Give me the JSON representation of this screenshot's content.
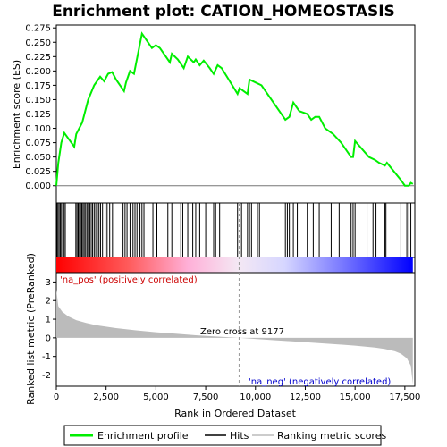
{
  "chart_data": {
    "type": "line",
    "title": "Enrichment plot: CATION_HOMEOSTASIS",
    "xlabel": "Rank in Ordered Dataset",
    "ylabel_top": "Enrichment score (ES)",
    "ylabel_bottom": "Ranked list metric (PreRanked)",
    "xlim": [
      0,
      18000
    ],
    "x_ticks": [
      "0",
      "2,500",
      "5,000",
      "7,500",
      "10,000",
      "12,500",
      "15,000",
      "17,500"
    ],
    "x_tick_values": [
      0,
      2500,
      5000,
      7500,
      10000,
      12500,
      15000,
      17500
    ],
    "es_ylim": [
      -0.03,
      0.28
    ],
    "es_ticks": [
      "0.000",
      "0.025",
      "0.050",
      "0.075",
      "0.100",
      "0.125",
      "0.150",
      "0.175",
      "0.200",
      "0.225",
      "0.250",
      "0.275"
    ],
    "es_tick_values": [
      0,
      0.025,
      0.05,
      0.075,
      0.1,
      0.125,
      0.15,
      0.175,
      0.2,
      0.225,
      0.25,
      0.275
    ],
    "metric_ylim": [
      -2.6,
      3.5
    ],
    "metric_ticks": [
      "3",
      "2",
      "1",
      "0",
      "-1",
      "-2"
    ],
    "metric_tick_values": [
      3,
      2,
      1,
      0,
      -1,
      -2
    ],
    "zero_cross_rank": 9177,
    "zero_cross_label": "Zero cross at 9177",
    "pos_label": "'na_pos' (positively correlated)",
    "neg_label": "'na_neg' (negatively correlated)",
    "es_curve": {
      "x": [
        0,
        100,
        250,
        400,
        900,
        1000,
        1300,
        1600,
        1900,
        2200,
        2400,
        2600,
        2800,
        3000,
        3200,
        3400,
        3500,
        3700,
        3900,
        4100,
        4300,
        4400,
        4800,
        5000,
        5200,
        5700,
        5800,
        6100,
        6400,
        6600,
        6900,
        7000,
        7200,
        7400,
        7700,
        7900,
        8100,
        8300,
        9100,
        9200,
        9400,
        9600,
        9700,
        10000,
        10300,
        11500,
        11700,
        11900,
        12000,
        12200,
        12600,
        12800,
        13000,
        13200,
        13500,
        13900,
        14300,
        14800,
        14900,
        15000,
        15700,
        16000,
        16200,
        16500,
        16600,
        17300,
        17500,
        17700,
        17800,
        17900
      ],
      "y": [
        0.0,
        0.04,
        0.075,
        0.092,
        0.068,
        0.09,
        0.11,
        0.15,
        0.175,
        0.19,
        0.182,
        0.195,
        0.198,
        0.185,
        0.175,
        0.165,
        0.18,
        0.2,
        0.195,
        0.23,
        0.265,
        0.26,
        0.24,
        0.245,
        0.24,
        0.215,
        0.23,
        0.22,
        0.205,
        0.225,
        0.215,
        0.22,
        0.21,
        0.218,
        0.205,
        0.195,
        0.21,
        0.205,
        0.16,
        0.17,
        0.165,
        0.16,
        0.185,
        0.18,
        0.175,
        0.115,
        0.12,
        0.145,
        0.14,
        0.13,
        0.125,
        0.115,
        0.12,
        0.12,
        0.1,
        0.09,
        0.075,
        0.05,
        0.05,
        0.078,
        0.05,
        0.045,
        0.04,
        0.035,
        0.04,
        0.01,
        0.0,
        0.0,
        0.005,
        0.003
      ]
    },
    "hits": [
      30,
      80,
      140,
      200,
      260,
      330,
      390,
      450,
      980,
      1040,
      1100,
      1160,
      1220,
      1280,
      1340,
      1400,
      1470,
      1540,
      1610,
      1680,
      1750,
      1820,
      1900,
      1980,
      2060,
      2140,
      2220,
      2320,
      2450,
      2550,
      2680,
      2820,
      3350,
      3450,
      3550,
      3700,
      3850,
      3950,
      4050,
      4200,
      4300,
      4400,
      4850,
      5050,
      5600,
      5800,
      6250,
      6350,
      6600,
      6850,
      7000,
      7200,
      7500,
      7900,
      8000,
      8200,
      9100,
      9300,
      9600,
      9700,
      9800,
      10100,
      10200,
      11500,
      11600,
      11700,
      11900,
      12100,
      12600,
      12900,
      13200,
      13800,
      14200,
      14800,
      14900,
      15000,
      15600,
      15900,
      16050,
      16500,
      16550,
      17300,
      17600,
      17700,
      17800
    ],
    "metric_curve": {
      "x": [
        0,
        100,
        300,
        600,
        1000,
        1500,
        2000,
        3000,
        4000,
        5000,
        6000,
        7000,
        8000,
        9177,
        10000,
        11000,
        12000,
        13000,
        14000,
        15000,
        16000,
        16500,
        17000,
        17300,
        17600,
        17800,
        17900
      ],
      "y": [
        2.6,
        1.7,
        1.4,
        1.15,
        0.95,
        0.8,
        0.68,
        0.52,
        0.4,
        0.3,
        0.22,
        0.14,
        0.07,
        0.0,
        -0.06,
        -0.13,
        -0.2,
        -0.27,
        -0.34,
        -0.42,
        -0.52,
        -0.6,
        -0.72,
        -0.85,
        -1.1,
        -1.5,
        -2.5
      ]
    },
    "legend": [
      "Enrichment profile",
      "Hits",
      "Ranking metric scores"
    ],
    "colors": {
      "es_line": "#00ee00",
      "hits": "#000000",
      "metric_fill": "#bbbbbb",
      "pos_text": "#cc0000",
      "neg_text": "#0000cc",
      "zero_line": "#999999",
      "bar_red": "#ff0000",
      "bar_blue": "#0000ff"
    }
  }
}
